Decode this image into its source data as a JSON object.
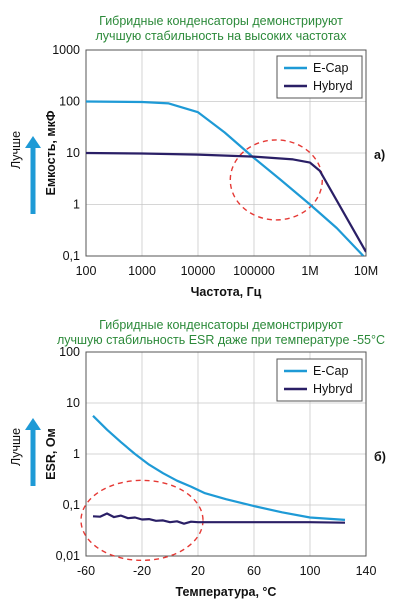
{
  "chart_data": [
    {
      "type": "line",
      "title": "Гибридные конденсаторы демонстрируют\nлучшую стабильность на высоких частотах",
      "xlabel": "Частота, Гц",
      "ylabel": "Емкость, мкФ",
      "side_label": "Лучше",
      "panel_label": "а)",
      "xscale": "log",
      "yscale": "log",
      "xlim": [
        100,
        10000000
      ],
      "ylim": [
        0.1,
        1000
      ],
      "xticks": [
        {
          "v": 100,
          "label": "100"
        },
        {
          "v": 1000,
          "label": "1000"
        },
        {
          "v": 10000,
          "label": "10000"
        },
        {
          "v": 100000,
          "label": "100000"
        },
        {
          "v": 1000000,
          "label": "1M"
        },
        {
          "v": 10000000,
          "label": "10M"
        }
      ],
      "yticks": [
        {
          "v": 0.1,
          "label": "0,1"
        },
        {
          "v": 1,
          "label": "1"
        },
        {
          "v": 10,
          "label": "10"
        },
        {
          "v": 100,
          "label": "100"
        },
        {
          "v": 1000,
          "label": "1000"
        }
      ],
      "grid": true,
      "legend_position": "top-right",
      "series": [
        {
          "name": "E-Cap",
          "color": "#1e9ad6",
          "x": [
            100,
            1000,
            3000,
            10000,
            30000,
            100000,
            300000,
            1000000,
            3000000,
            9000000
          ],
          "y": [
            100,
            98,
            92,
            62,
            25,
            8,
            3,
            1,
            0.35,
            0.1
          ]
        },
        {
          "name": "Hybryd",
          "color": "#2a1f66",
          "x": [
            100,
            1000,
            10000,
            100000,
            500000,
            1000000,
            1500000,
            3000000,
            10000000
          ],
          "y": [
            10,
            9.8,
            9.3,
            8.5,
            7.5,
            6.5,
            4.5,
            1.2,
            0.12
          ]
        }
      ],
      "highlight": {
        "cx": 250000,
        "cy": 3,
        "note": "red dashed ellipse"
      }
    },
    {
      "type": "line",
      "title": "Гибридные конденсаторы демонстрируют\nлучшую стабильность ESR даже при температуре -55°C",
      "xlabel": "Температура, °C",
      "ylabel": "ESR, Ом",
      "side_label": "Лучше",
      "panel_label": "б)",
      "xscale": "linear",
      "yscale": "log",
      "xlim": [
        -60,
        140
      ],
      "ylim": [
        0.01,
        100
      ],
      "xticks": [
        {
          "v": -60,
          "label": "-60"
        },
        {
          "v": -20,
          "label": "-20"
        },
        {
          "v": 20,
          "label": "20"
        },
        {
          "v": 60,
          "label": "60"
        },
        {
          "v": 100,
          "label": "100"
        },
        {
          "v": 140,
          "label": "140"
        }
      ],
      "yticks": [
        {
          "v": 0.01,
          "label": "0,01"
        },
        {
          "v": 0.1,
          "label": "0,1"
        },
        {
          "v": 1,
          "label": "1"
        },
        {
          "v": 10,
          "label": "10"
        },
        {
          "v": 100,
          "label": "100"
        }
      ],
      "grid": true,
      "legend_position": "top-right",
      "series": [
        {
          "name": "E-Cap",
          "color": "#1e9ad6",
          "x": [
            -55,
            -45,
            -35,
            -25,
            -15,
            -5,
            5,
            15,
            25,
            40,
            60,
            80,
            100,
            125
          ],
          "y": [
            5.6,
            3,
            1.7,
            1.0,
            0.62,
            0.42,
            0.3,
            0.23,
            0.17,
            0.13,
            0.095,
            0.072,
            0.057,
            0.051
          ]
        },
        {
          "name": "Hybryd",
          "color": "#2a1f66",
          "x": [
            -55,
            -50,
            -45,
            -40,
            -35,
            -30,
            -25,
            -20,
            -15,
            -10,
            -5,
            0,
            5,
            10,
            15,
            20,
            40,
            60,
            80,
            100,
            125
          ],
          "y": [
            0.06,
            0.059,
            0.068,
            0.058,
            0.062,
            0.055,
            0.057,
            0.052,
            0.053,
            0.049,
            0.05,
            0.046,
            0.048,
            0.043,
            0.047,
            0.046,
            0.046,
            0.046,
            0.046,
            0.046,
            0.045
          ]
        }
      ],
      "highlight": {
        "cx": -20,
        "cy": 0.05,
        "note": "red dashed ellipse"
      }
    }
  ]
}
